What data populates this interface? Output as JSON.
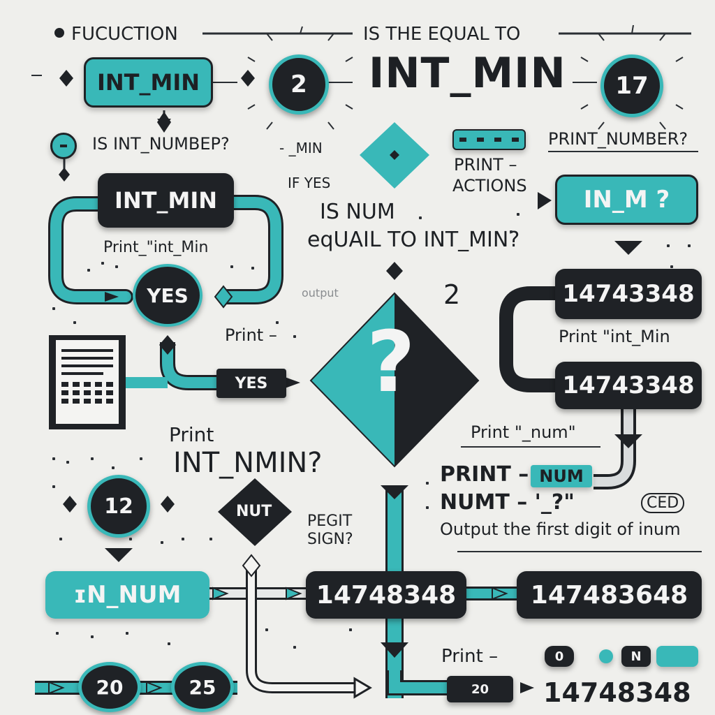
{
  "header": {
    "fucuction": "FUCUCTION",
    "is_the_equal_to": "IS THE EQUAL TO",
    "int_min_title": "INT_MIN"
  },
  "top": {
    "int_min_box": "INT_MIN",
    "circle_2": "2",
    "circle_17": "17",
    "is_int_number": "IS INT_NUMBEP?",
    "min_fragment": "- _MIN",
    "if_yes": "IF YES",
    "print_number": "PRINT_NUMBER?",
    "print_actions_1": "PRINT –",
    "print_actions_2": "ACTIONS",
    "in_m_box": "IN_M ?"
  },
  "left": {
    "int_min_box": "INT_MIN",
    "print_int_min": "Print_\"int_Min",
    "yes_circle": "YES",
    "yes_arrow": "YES",
    "print_label": "Print –"
  },
  "center": {
    "is_num_line1": "IS NUM",
    "is_num_line2": "eqUAIL TO INT_MIN?",
    "output": "output",
    "two": "2",
    "question": "?"
  },
  "right": {
    "num_box_1": "14743348",
    "print_int_min": "Print \"int_Min",
    "num_box_2": "14743348",
    "print_num": "Print \"_num\"",
    "print_word": "PRINT –",
    "num_chip": "NUM",
    "numt": "NUMT – '_?\"",
    "ced": "CED",
    "output_first_digit": "Output the first digit of inum"
  },
  "lower_left": {
    "print": "Print",
    "int_nmin": "INT_NMIN?",
    "circle_12": "12",
    "nut": "NUT",
    "pegit_sign_1": "PEGIT",
    "pegit_sign_2": "SIGN?",
    "n_num_box": "ɪN_NUM"
  },
  "bottom": {
    "num_box_mid": "14748348",
    "num_box_right": "147483648",
    "print_bottom": "Print –",
    "circle_20": "20",
    "circle_25": "25",
    "small_20": "20",
    "bottom_number": "14748348",
    "o_chip": "0",
    "n_chip": "N"
  },
  "colors": {
    "teal": "#39b8b8",
    "dark": "#1f2226",
    "background": "#efefec"
  }
}
